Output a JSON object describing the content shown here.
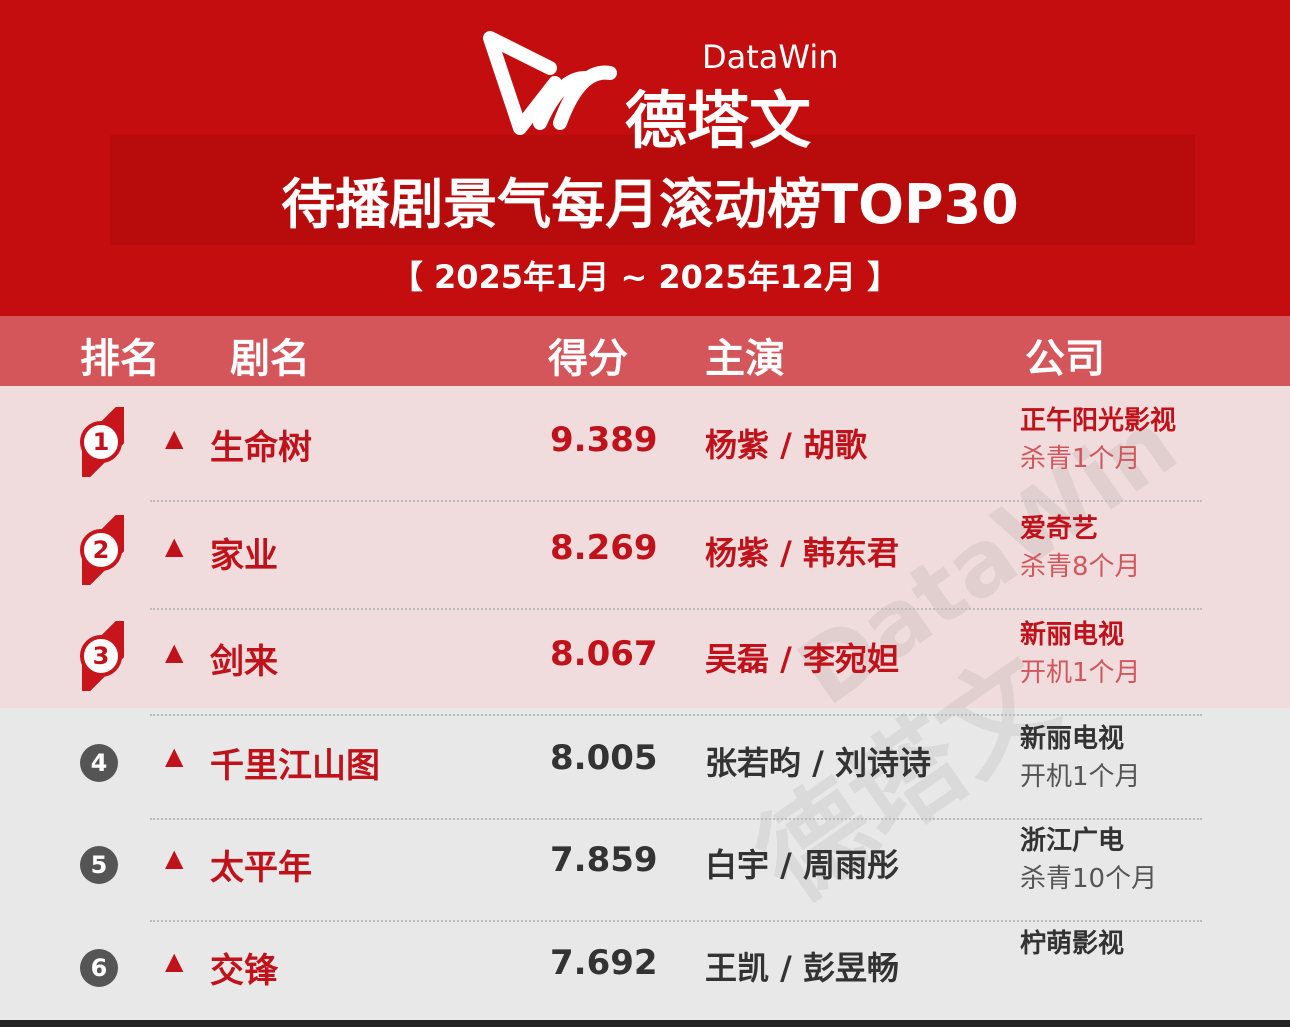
{
  "header": {
    "brand_en": "DataWin",
    "brand_cn": "德塔文",
    "title": "待播剧景气每月滚动榜TOP30",
    "period": "【 2025年1月 ~ 2025年12月 】"
  },
  "table": {
    "columns": [
      "排名",
      "剧名",
      "得分",
      "主演",
      "公司"
    ],
    "rows": [
      {
        "rank": 1,
        "trend": "▲",
        "name": "生命树",
        "score": 9.389,
        "cast": "杨紫 / 胡歌",
        "company": "正午阳光影视",
        "status": "杀青1个月"
      },
      {
        "rank": 2,
        "trend": "▲",
        "name": "家业",
        "score": 8.269,
        "cast": "杨紫 / 韩东君",
        "company": "爱奇艺",
        "status": "杀青8个月"
      },
      {
        "rank": 3,
        "trend": "▲",
        "name": "剑来",
        "score": 8.067,
        "cast": "吴磊 / 李宛妲",
        "company": "新丽电视",
        "status": "开机1个月"
      },
      {
        "rank": 4,
        "trend": "▲",
        "name": "千里江山图",
        "score": 8.005,
        "cast": "张若昀 / 刘诗诗",
        "company": "新丽电视",
        "status": "开机1个月"
      },
      {
        "rank": 5,
        "trend": "▲",
        "name": "太平年",
        "score": 7.859,
        "cast": "白宇 / 周雨彤",
        "company": "浙江广电",
        "status": "杀青10个月"
      },
      {
        "rank": 6,
        "trend": "▲",
        "name": "交锋",
        "score": 7.692,
        "cast": "王凯 / 彭昱畅",
        "company": "柠萌影视"
      }
    ]
  }
}
